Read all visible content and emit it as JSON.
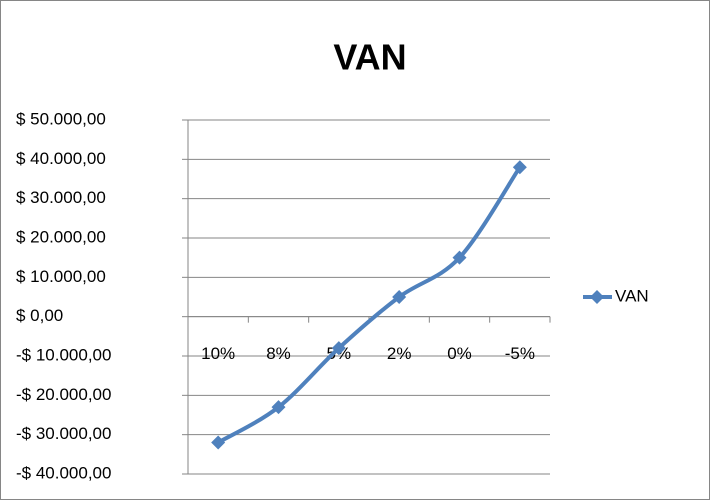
{
  "chart_data": {
    "type": "line",
    "title": "VAN",
    "categories": [
      "10%",
      "8%",
      "5%",
      "2%",
      "0%",
      "-5%"
    ],
    "series": [
      {
        "name": "VAN",
        "color": "#4f81bd",
        "values": [
          -32000,
          -23000,
          -8000,
          5000,
          15000,
          38000
        ]
      }
    ],
    "ylim": [
      -40000,
      50000
    ],
    "yticks": [
      {
        "value": -40000,
        "label": "-$ 40.000,00"
      },
      {
        "value": -30000,
        "label": "-$ 30.000,00"
      },
      {
        "value": -20000,
        "label": "-$ 20.000,00"
      },
      {
        "value": -10000,
        "label": "-$ 10.000,00"
      },
      {
        "value": 0,
        "label": "$ 0,00"
      },
      {
        "value": 10000,
        "label": "$ 10.000,00"
      },
      {
        "value": 20000,
        "label": "$ 20.000,00"
      },
      {
        "value": 30000,
        "label": "$ 30.000,00"
      },
      {
        "value": 40000,
        "label": "$ 40.000,00"
      },
      {
        "value": 50000,
        "label": "$ 50.000,00"
      }
    ],
    "grid": true,
    "smooth": true,
    "legend": "right"
  }
}
